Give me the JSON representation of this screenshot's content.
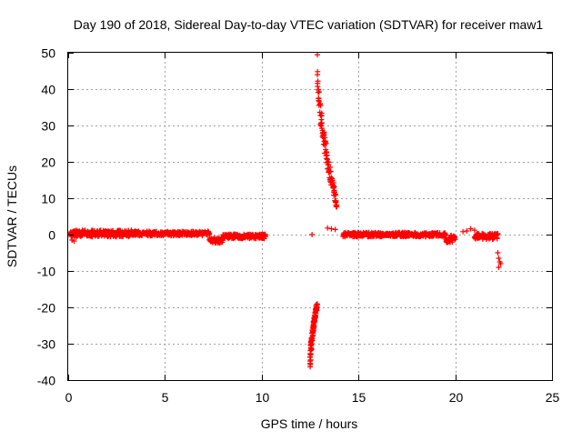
{
  "chart_data": {
    "type": "scatter",
    "title": "Day 190 of 2018, Sidereal Day-to-day VTEC variation (SDTVAR) for receiver maw1",
    "xlabel": "GPS time / hours",
    "ylabel": "SDTVAR / TECUs",
    "xlim": [
      0,
      25
    ],
    "ylim": [
      -40,
      50
    ],
    "xticks": [
      "0",
      "5",
      "10",
      "15",
      "20",
      "25"
    ],
    "yticks": [
      "50",
      "40",
      "30",
      "20",
      "10",
      "0",
      "-10",
      "-20",
      "-30",
      "-40"
    ],
    "grid": true,
    "marker": "+",
    "color": "#ff0000",
    "segments": [
      {
        "name": "seg-early-morning",
        "x_start": 0.1,
        "x_end": 3.5,
        "y_center": 0.3,
        "spread": 0.9
      },
      {
        "name": "seg-morning",
        "x_start": 3.5,
        "x_end": 7.3,
        "y_center": 0.3,
        "spread": 0.6
      },
      {
        "name": "seg-dip",
        "x_start": 7.3,
        "x_end": 8.0,
        "y_center": -1.5,
        "spread": 0.8
      },
      {
        "name": "seg-late-morning",
        "x_start": 8.0,
        "x_end": 10.2,
        "y_center": -0.5,
        "spread": 0.6
      },
      {
        "name": "seg-post-event",
        "x_start": 14.2,
        "x_end": 19.5,
        "y_center": 0.0,
        "spread": 0.6
      },
      {
        "name": "seg-evening",
        "x_start": 19.5,
        "x_end": 20.0,
        "y_center": -1.2,
        "spread": 1.0
      },
      {
        "name": "seg-night",
        "x_start": 21.0,
        "x_end": 22.2,
        "y_center": -0.5,
        "spread": 0.8
      }
    ],
    "curves": [
      {
        "name": "positive-excursion",
        "x_start": 12.85,
        "x_end": 13.9,
        "y_start": 47,
        "y_end": 8,
        "spread": 2.5
      },
      {
        "name": "negative-excursion",
        "x_start": 12.5,
        "x_end": 12.85,
        "y_start": -36,
        "y_end": -19.5,
        "spread": 1.0
      }
    ],
    "points": [
      {
        "x": 0.2,
        "y": -1.5
      },
      {
        "x": 0.3,
        "y": -1.8
      },
      {
        "x": 0.4,
        "y": -0.8
      },
      {
        "x": 12.6,
        "y": 0.0
      },
      {
        "x": 13.4,
        "y": 1.8
      },
      {
        "x": 13.6,
        "y": 1.6
      },
      {
        "x": 13.8,
        "y": 1.4
      },
      {
        "x": 20.4,
        "y": 0.8
      },
      {
        "x": 20.6,
        "y": 1.0
      },
      {
        "x": 20.8,
        "y": 1.6
      },
      {
        "x": 21.0,
        "y": 1.2
      },
      {
        "x": 22.2,
        "y": -5.0
      },
      {
        "x": 22.25,
        "y": -6.5
      },
      {
        "x": 22.3,
        "y": -7.5
      },
      {
        "x": 22.25,
        "y": -9.0
      },
      {
        "x": 22.35,
        "y": -8.0
      }
    ]
  }
}
